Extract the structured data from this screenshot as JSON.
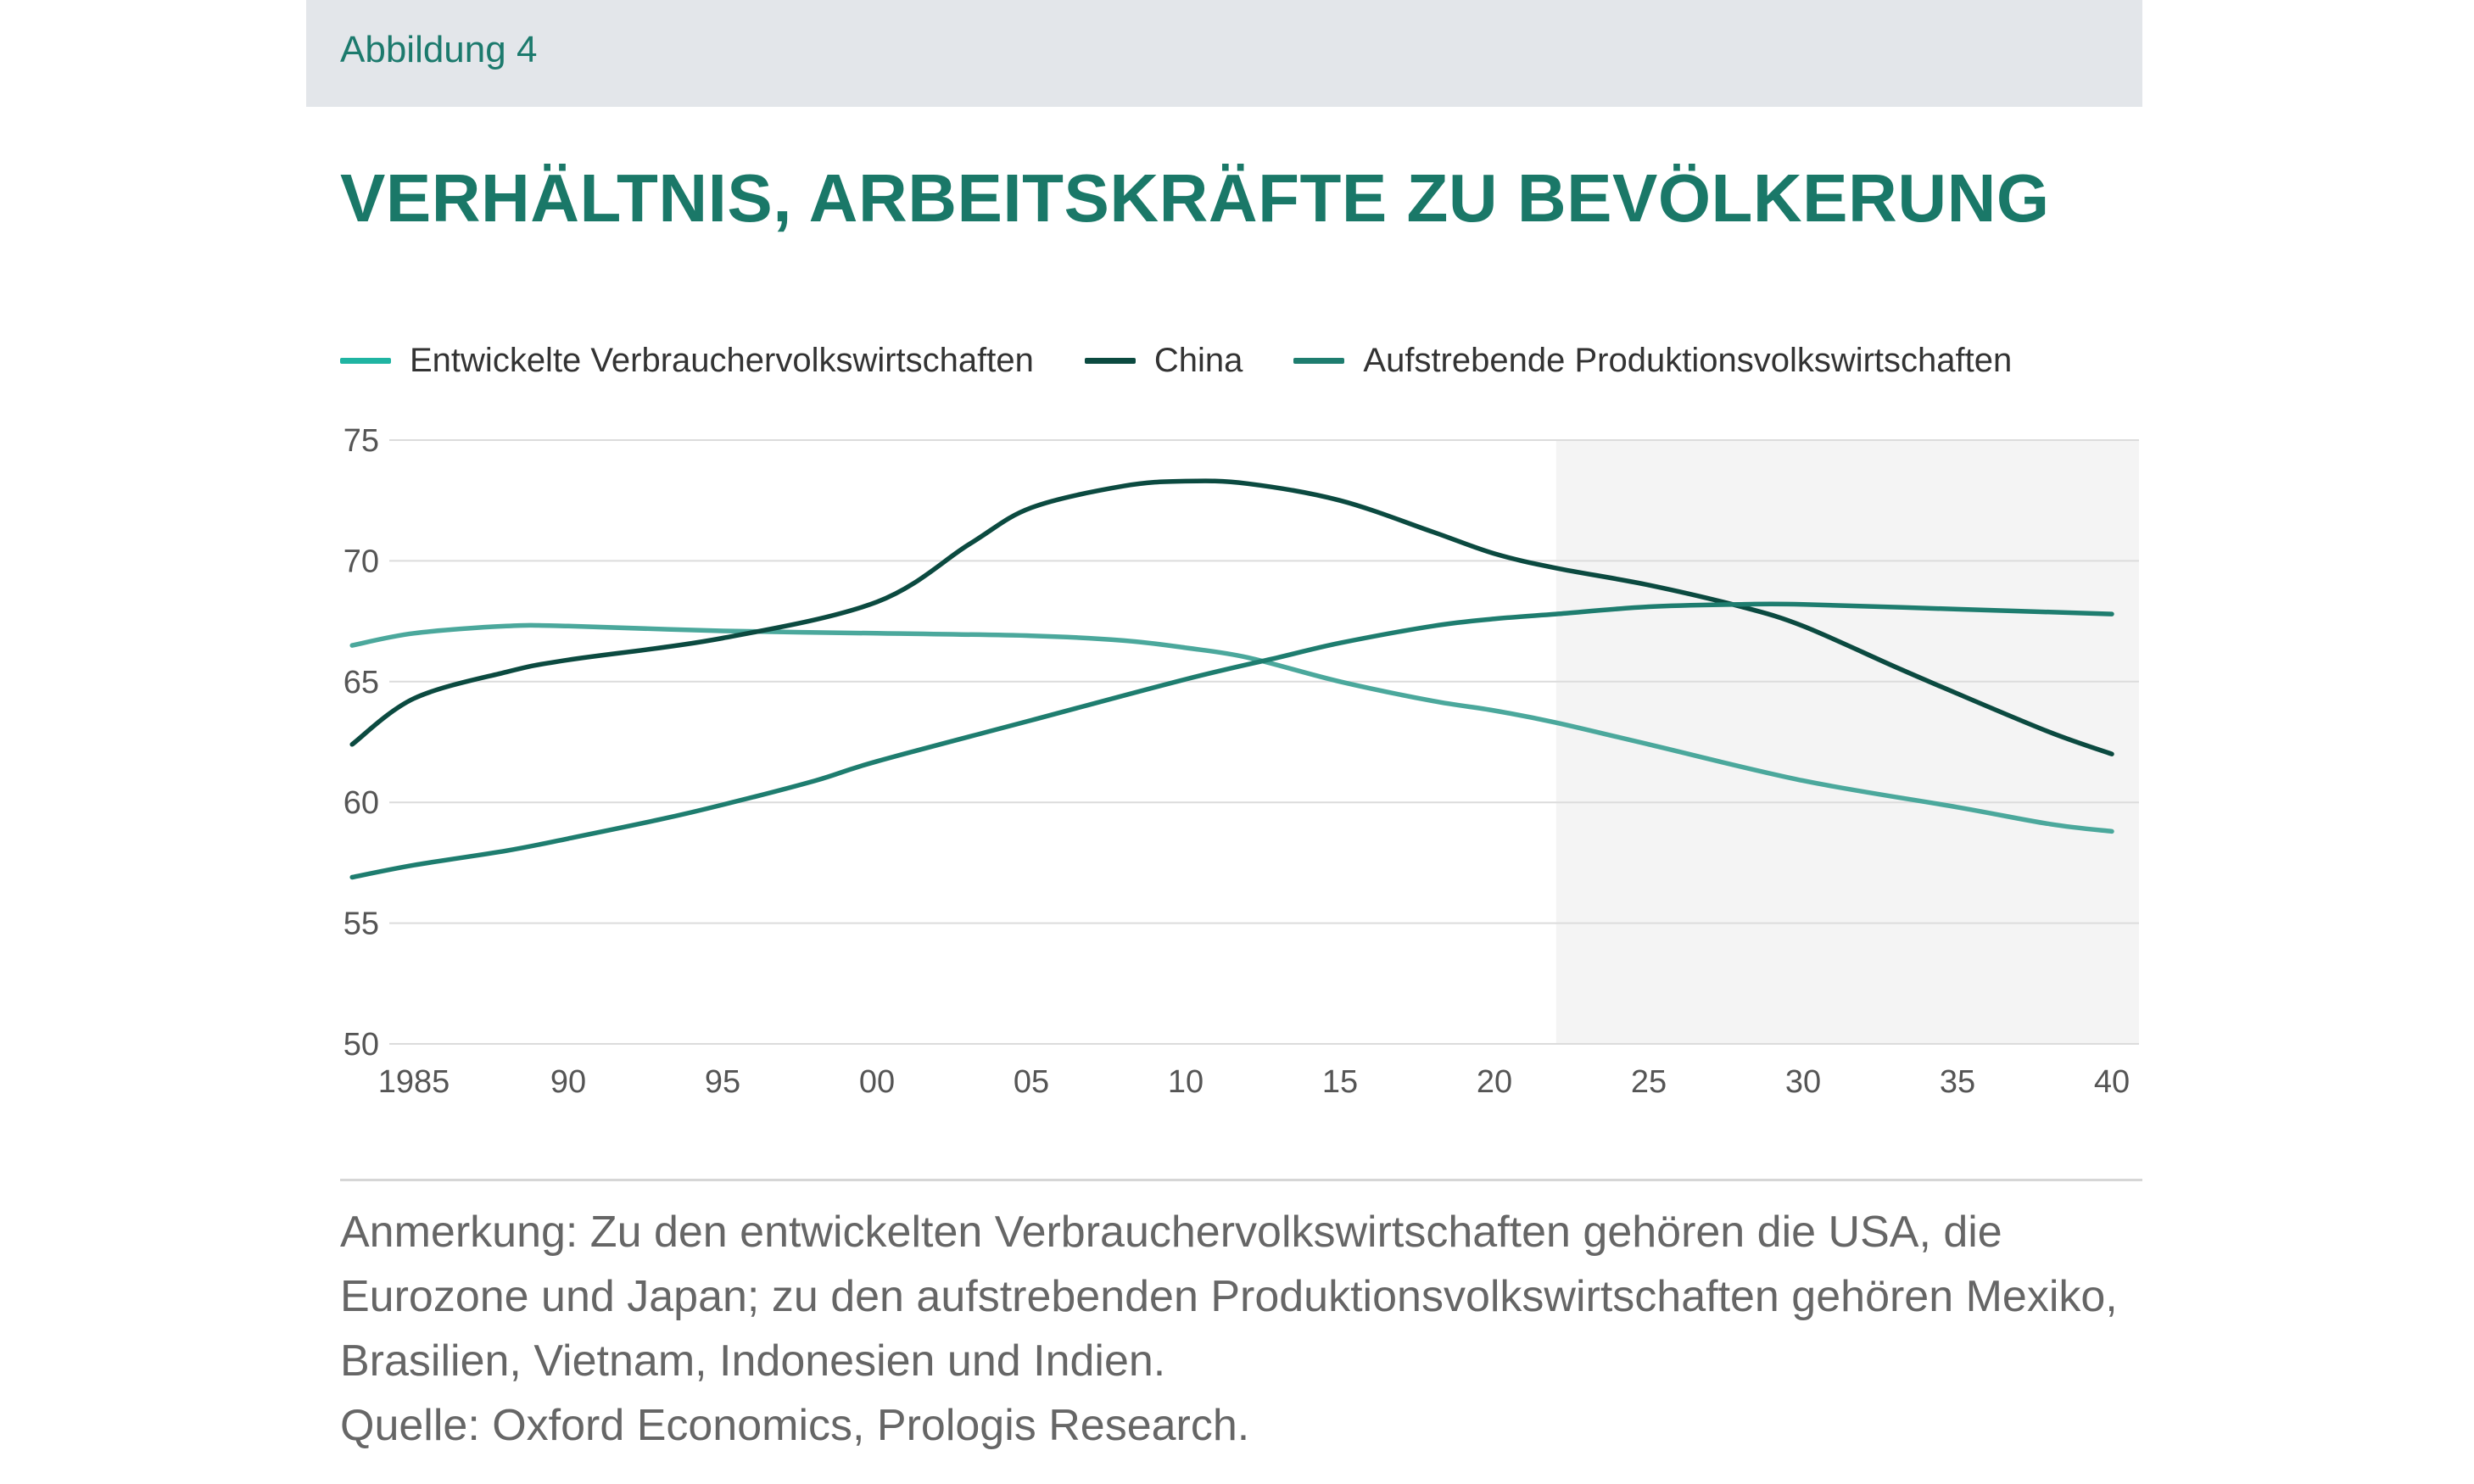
{
  "figure_label": "Abbildung 4",
  "title": "VERHÄLTNIS, ARBEITSKRÄFTE ZU BEVÖLKERUNG",
  "note": "Anmerkung: Zu den entwickelten Verbrauchervolkswirtschaften gehören die USA, die Eurozone und Japan; zu den aufstrebenden Produktionsvolkswirtschaften gehören Mexiko, Brasilien, Vietnam, Indonesien und Indien.",
  "source": "Quelle: Oxford Economics, Prologis Research.",
  "colors": {
    "developed": "#4ba89c",
    "china": "#0b4a40",
    "emerging": "#1e7d6f",
    "legend_developed": "#1fb4a2",
    "forecast_shade": "#f4f4f4",
    "grid": "#dcdcdc"
  },
  "chart_data": {
    "type": "line",
    "title": "VERHÄLTNIS, ARBEITSKRÄFTE ZU BEVÖLKERUNG",
    "xlabel": "",
    "ylabel": "",
    "xlim": [
      1983,
      2040
    ],
    "ylim": [
      50,
      75
    ],
    "grid": true,
    "legend_position": "top-left",
    "forecast_start": 2022,
    "x_ticks": [
      1985,
      1990,
      1995,
      2000,
      2005,
      2010,
      2015,
      2020,
      2025,
      2030,
      2035,
      2040
    ],
    "x_tick_labels": [
      "1985",
      "90",
      "95",
      "00",
      "05",
      "10",
      "15",
      "20",
      "25",
      "30",
      "35",
      "40"
    ],
    "y_ticks": [
      75,
      70,
      65,
      60,
      55,
      50
    ],
    "y_tick_labels": [
      "75",
      "70",
      "65",
      "60",
      "55",
      "50"
    ],
    "series": [
      {
        "name": "Entwickelte Verbrauchervolkswirtschaften",
        "color_key": "developed",
        "x": [
          1983,
          1985,
          1988,
          1990,
          1995,
          2000,
          2005,
          2008,
          2010,
          2012,
          2015,
          2018,
          2020,
          2022,
          2025,
          2030,
          2035,
          2038,
          2040
        ],
        "y": [
          66.5,
          67.0,
          67.3,
          67.3,
          67.1,
          67.0,
          66.9,
          66.7,
          66.4,
          66.0,
          65.0,
          64.2,
          63.8,
          63.3,
          62.4,
          60.9,
          59.8,
          59.1,
          58.8
        ]
      },
      {
        "name": "China",
        "color_key": "china",
        "x": [
          1983,
          1985,
          1988,
          1990,
          1995,
          2000,
          2003,
          2005,
          2008,
          2010,
          2012,
          2015,
          2018,
          2020,
          2022,
          2025,
          2028,
          2030,
          2033,
          2035,
          2038,
          2040
        ],
        "y": [
          62.4,
          64.3,
          65.4,
          65.9,
          66.8,
          68.3,
          70.7,
          72.2,
          73.1,
          73.3,
          73.2,
          72.5,
          71.2,
          70.3,
          69.7,
          69.0,
          68.1,
          67.3,
          65.6,
          64.5,
          62.9,
          62.0
        ]
      },
      {
        "name": "Aufstrebende Produktionsvolkswirtschaften",
        "color_key": "emerging",
        "x": [
          1983,
          1985,
          1988,
          1990,
          1993,
          1995,
          1998,
          2000,
          2005,
          2010,
          2013,
          2015,
          2018,
          2020,
          2022,
          2025,
          2028,
          2030,
          2035,
          2040
        ],
        "y": [
          56.9,
          57.4,
          58.0,
          58.5,
          59.3,
          59.9,
          60.9,
          61.7,
          63.4,
          65.1,
          66.0,
          66.6,
          67.3,
          67.6,
          67.8,
          68.1,
          68.2,
          68.2,
          68.0,
          67.8
        ]
      }
    ]
  }
}
